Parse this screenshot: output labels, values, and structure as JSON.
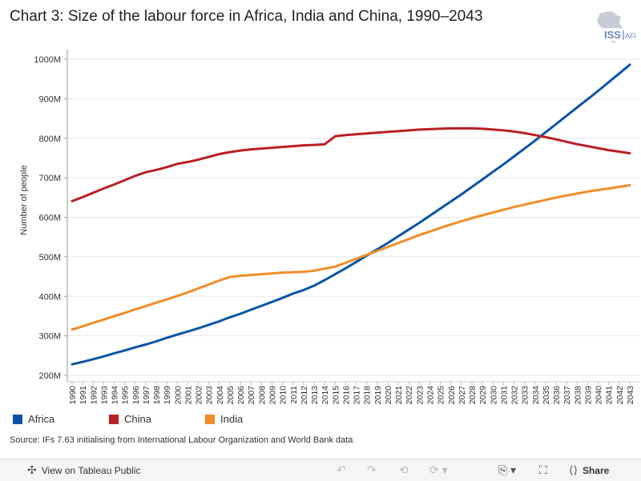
{
  "title": "Chart 3: Size of the labour force in Africa, India and China, 1990–2043",
  "logo": {
    "text": "ISS",
    "subtext": "AFI",
    "icon": "africa-map-icon"
  },
  "source": "Source: IFs 7.63 initialising from International Labour Organization and World Bank data",
  "toolbar": {
    "view_label": "View on Tableau Public",
    "share_label": "Share",
    "icons": [
      "tableau-icon",
      "undo-icon",
      "redo-icon",
      "revert-icon",
      "refresh-icon",
      "download-icon",
      "fullscreen-icon",
      "share-icon"
    ]
  },
  "colors": {
    "Africa": "#0b55a4",
    "China": "#b82025",
    "India": "#f18d29"
  },
  "chart_data": {
    "type": "line",
    "title": "Chart 3: Size of the labour force in Africa, India and China, 1990–2043",
    "xlabel": "",
    "ylabel": "Number of people",
    "ylim": [
      200,
      1000
    ],
    "yticks": [
      "200M",
      "300M",
      "400M",
      "500M",
      "600M",
      "700M",
      "800M",
      "900M",
      "1000M"
    ],
    "x": [
      1990,
      1991,
      1992,
      1993,
      1994,
      1995,
      1996,
      1997,
      1998,
      1999,
      2000,
      2001,
      2002,
      2003,
      2004,
      2005,
      2006,
      2007,
      2008,
      2009,
      2010,
      2011,
      2012,
      2013,
      2014,
      2015,
      2016,
      2017,
      2018,
      2019,
      2020,
      2021,
      2022,
      2023,
      2024,
      2025,
      2026,
      2027,
      2028,
      2029,
      2030,
      2031,
      2032,
      2033,
      2034,
      2035,
      2036,
      2037,
      2038,
      2039,
      2040,
      2041,
      2042,
      2043
    ],
    "grid": true,
    "legend": "bottom-left",
    "series": [
      {
        "name": "Africa",
        "values": [
          228,
          234,
          241,
          248,
          256,
          263,
          271,
          278,
          286,
          295,
          303,
          311,
          319,
          328,
          337,
          347,
          356,
          366,
          376,
          386,
          396,
          407,
          416,
          427,
          441,
          456,
          471,
          487,
          503,
          519,
          535,
          552,
          569,
          586,
          604,
          622,
          640,
          658,
          677,
          696,
          715,
          734,
          754,
          774,
          794,
          815,
          836,
          857,
          878,
          899,
          920,
          942,
          964,
          986
        ]
      },
      {
        "name": "China",
        "values": [
          641,
          651,
          662,
          673,
          683,
          694,
          705,
          714,
          720,
          727,
          735,
          740,
          746,
          753,
          760,
          765,
          769,
          772,
          774,
          776,
          778,
          780,
          782,
          783,
          785,
          805,
          808,
          810,
          812,
          814,
          816,
          818,
          820,
          822,
          823,
          824,
          825,
          825,
          825,
          824,
          822,
          820,
          817,
          813,
          808,
          803,
          797,
          791,
          785,
          780,
          775,
          770,
          766,
          762
        ]
      },
      {
        "name": "India",
        "values": [
          316,
          324,
          333,
          341,
          350,
          358,
          367,
          375,
          384,
          392,
          401,
          410,
          420,
          430,
          440,
          449,
          452,
          454,
          456,
          458,
          460,
          461,
          462,
          465,
          470,
          475,
          485,
          495,
          505,
          515,
          525,
          535,
          545,
          555,
          564,
          573,
          582,
          590,
          598,
          605,
          612,
          619,
          626,
          632,
          638,
          644,
          650,
          655,
          660,
          665,
          669,
          673,
          677,
          681
        ]
      }
    ]
  }
}
